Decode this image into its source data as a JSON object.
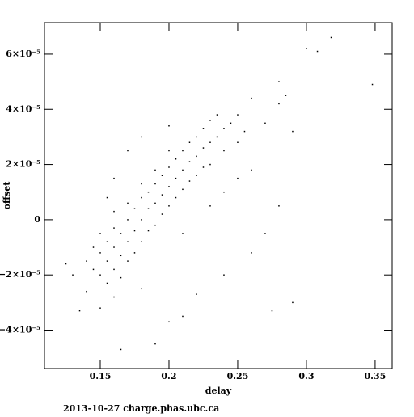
{
  "chart_data": {
    "type": "scatter",
    "xlabel": "delay",
    "ylabel": "offset",
    "footer": "2013-10-27 charge.phas.ubc.ca",
    "color": "#000000",
    "xlim": [
      0.1094,
      0.3624
    ],
    "ylim": [
      -5.39e-05,
      7.14e-05
    ],
    "xticks": [
      0.15,
      0.2,
      0.25,
      0.3,
      0.35
    ],
    "yticks": [
      {
        "value": -4e-05,
        "label": "−4×10⁻⁵"
      },
      {
        "value": -2e-05,
        "label": "−2×10⁻⁵"
      },
      0,
      {
        "value": 2e-05,
        "label": "2×10⁻⁵"
      },
      {
        "value": 4e-05,
        "label": "4×10⁻⁵"
      },
      {
        "value": 6e-05,
        "label": "6×10⁻⁵"
      }
    ],
    "x": [
      0.14,
      0.145,
      0.145,
      0.15,
      0.15,
      0.15,
      0.155,
      0.155,
      0.155,
      0.16,
      0.16,
      0.16,
      0.16,
      0.165,
      0.165,
      0.165,
      0.17,
      0.17,
      0.17,
      0.17,
      0.175,
      0.175,
      0.175,
      0.18,
      0.18,
      0.18,
      0.18,
      0.185,
      0.185,
      0.185,
      0.19,
      0.19,
      0.19,
      0.19,
      0.195,
      0.195,
      0.195,
      0.2,
      0.2,
      0.2,
      0.2,
      0.205,
      0.205,
      0.205,
      0.21,
      0.21,
      0.21,
      0.215,
      0.215,
      0.215,
      0.22,
      0.22,
      0.22,
      0.225,
      0.225,
      0.225,
      0.23,
      0.23,
      0.23,
      0.235,
      0.235,
      0.24,
      0.24,
      0.245,
      0.25,
      0.25,
      0.125,
      0.13,
      0.135,
      0.14,
      0.15,
      0.16,
      0.165,
      0.18,
      0.19,
      0.2,
      0.21,
      0.22,
      0.24,
      0.26,
      0.27,
      0.28,
      0.29,
      0.275,
      0.26,
      0.27,
      0.28,
      0.28,
      0.285,
      0.29,
      0.3,
      0.308,
      0.318,
      0.348,
      0.26,
      0.255,
      0.23,
      0.21,
      0.24,
      0.17,
      0.18,
      0.2,
      0.155,
      0.16,
      0.25
    ],
    "y": [
      -1.5e-05,
      -1.8e-05,
      -1e-05,
      -1.2e-05,
      -2e-05,
      -5e-06,
      -1.5e-05,
      -8e-06,
      -2.3e-05,
      -1e-05,
      -3e-06,
      -1.8e-05,
      3e-06,
      -1.3e-05,
      -5e-06,
      -2.1e-05,
      -8e-06,
      0,
      -1.5e-05,
      6e-06,
      -4e-06,
      4e-06,
      -1.2e-05,
      0,
      8e-06,
      -8e-06,
      1.3e-05,
      4e-06,
      1e-05,
      -4e-06,
      6e-06,
      1.3e-05,
      -2e-06,
      1.8e-05,
      9e-06,
      1.6e-05,
      2e-06,
      1.2e-05,
      1.9e-05,
      5e-06,
      2.5e-05,
      1.5e-05,
      2.2e-05,
      8e-06,
      1.8e-05,
      2.5e-05,
      1.1e-05,
      2.1e-05,
      2.8e-05,
      1.4e-05,
      2.3e-05,
      3e-05,
      1.6e-05,
      2.6e-05,
      3.3e-05,
      1.9e-05,
      2.8e-05,
      3.6e-05,
      2e-05,
      3e-05,
      3.8e-05,
      3.3e-05,
      2.5e-05,
      3.5e-05,
      3.8e-05,
      2.8e-05,
      -1.6e-05,
      -2e-05,
      -3.3e-05,
      -2.6e-05,
      -3.2e-05,
      -2.8e-05,
      -4.7e-05,
      -2.5e-05,
      -4.5e-05,
      -3.7e-05,
      -3.5e-05,
      -2.7e-05,
      -2e-05,
      -1.2e-05,
      -5e-06,
      5e-06,
      -3e-05,
      -3.3e-05,
      1.8e-05,
      3.5e-05,
      4.2e-05,
      5e-05,
      4.5e-05,
      3.2e-05,
      6.2e-05,
      6.1e-05,
      6.6e-05,
      4.9e-05,
      4.4e-05,
      3.2e-05,
      5e-06,
      -5e-06,
      1e-05,
      2.5e-05,
      3e-05,
      3.4e-05,
      8e-06,
      1.5e-05,
      1.5e-05
    ]
  }
}
